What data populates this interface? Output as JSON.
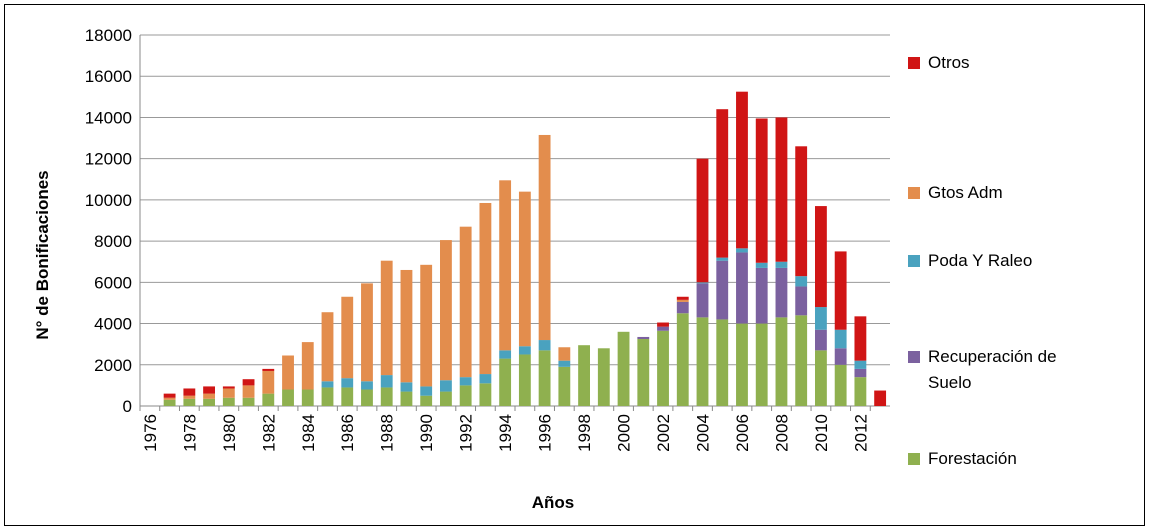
{
  "chart_data": {
    "type": "stacked_bar",
    "y_label": "N° de Bonificaciones",
    "x_label": "Años",
    "categories": [
      "1976",
      null,
      "1978",
      null,
      "1980",
      null,
      "1982",
      null,
      "1984",
      null,
      "1986",
      null,
      "1988",
      null,
      "1990",
      null,
      "1992",
      null,
      "1994",
      null,
      "1996",
      null,
      "1998",
      null,
      "2000",
      null,
      "2002",
      null,
      "2004",
      null,
      "2006",
      null,
      "2008",
      null,
      "2010",
      null,
      "2012",
      null
    ],
    "series": [
      {
        "name": "Forestación",
        "color": "#8fb04f",
        "values": [
          0,
          300,
          350,
          350,
          400,
          400,
          600,
          800,
          800,
          900,
          900,
          800,
          900,
          700,
          500,
          700,
          1000,
          1100,
          2300,
          2500,
          2700,
          1900,
          2950,
          2800,
          3600,
          3250,
          3650,
          4500,
          4300,
          4200,
          4000,
          4000,
          4300,
          4400,
          2700,
          2000,
          1400,
          0
        ]
      },
      {
        "name": "Recuperación de Suelo",
        "color": "#7b619f",
        "values": [
          0,
          0,
          0,
          0,
          0,
          0,
          0,
          0,
          0,
          0,
          0,
          0,
          0,
          0,
          0,
          0,
          0,
          0,
          0,
          0,
          0,
          0,
          0,
          0,
          0,
          100,
          200,
          550,
          1650,
          2850,
          3450,
          2700,
          2400,
          1400,
          1000,
          800,
          400,
          0
        ]
      },
      {
        "name": "Poda Y Raleo",
        "color": "#4aa2bf",
        "values": [
          0,
          0,
          0,
          0,
          0,
          0,
          0,
          0,
          0,
          300,
          450,
          400,
          600,
          450,
          450,
          550,
          400,
          450,
          400,
          400,
          500,
          300,
          0,
          0,
          0,
          0,
          0,
          0,
          50,
          150,
          200,
          250,
          300,
          500,
          1100,
          900,
          400,
          0
        ]
      },
      {
        "name": "Gtos Adm",
        "color": "#e38d4d",
        "values": [
          0,
          100,
          150,
          250,
          450,
          600,
          1100,
          1650,
          2300,
          3350,
          3950,
          4750,
          5550,
          5450,
          5900,
          6800,
          7300,
          8300,
          8250,
          7500,
          9950,
          650,
          0,
          0,
          0,
          0,
          0,
          100,
          0,
          0,
          0,
          0,
          0,
          0,
          0,
          0,
          0,
          0
        ]
      },
      {
        "name": "Otros",
        "color": "#d01515",
        "values": [
          0,
          200,
          350,
          350,
          100,
          300,
          100,
          0,
          0,
          0,
          0,
          0,
          0,
          0,
          0,
          0,
          0,
          0,
          0,
          0,
          0,
          0,
          0,
          0,
          0,
          0,
          200,
          150,
          6000,
          7200,
          7600,
          7000,
          7000,
          6300,
          4900,
          3800,
          2150,
          750
        ]
      }
    ],
    "ylim": [
      0,
      18000
    ],
    "yticks": [
      0,
      2000,
      4000,
      6000,
      8000,
      10000,
      12000,
      14000,
      16000,
      18000
    ],
    "grid": true
  }
}
